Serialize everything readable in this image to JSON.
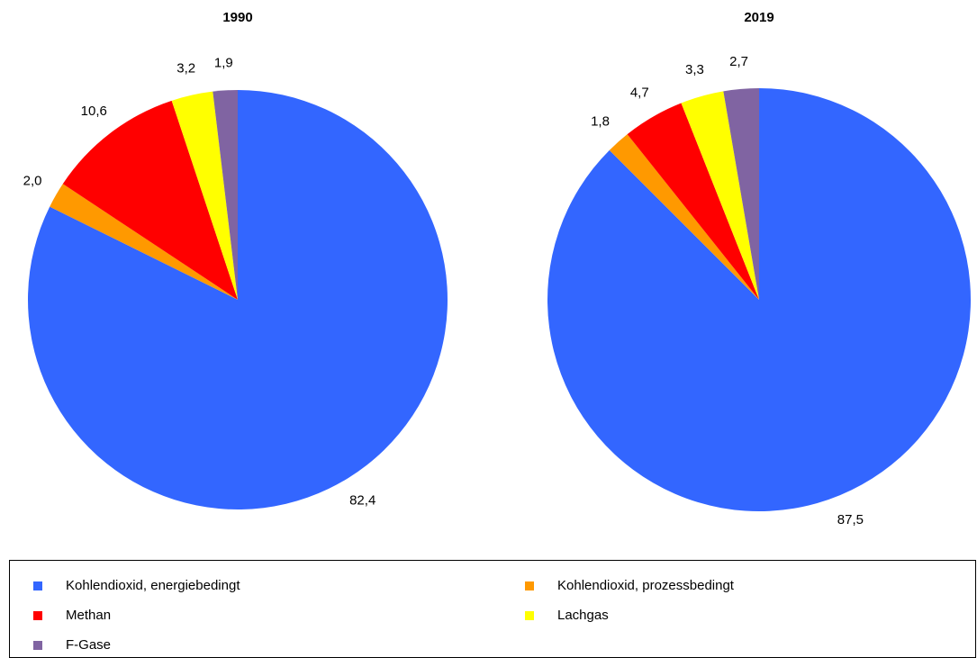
{
  "chart_data": [
    {
      "type": "pie",
      "title": "1990",
      "categories": [
        "Kohlendioxid, energiebedingt",
        "Kohlendioxid, prozessbedingt",
        "Methan",
        "Lachgas",
        "F-Gase"
      ],
      "colors": [
        "#3366ff",
        "#ff9900",
        "#ff0000",
        "#ffff00",
        "#8064a2"
      ],
      "values": [
        82.4,
        2.0,
        10.6,
        3.2,
        1.9
      ],
      "value_labels": [
        "82,4",
        "2,0",
        "10,6",
        "3,2",
        "1,9"
      ]
    },
    {
      "type": "pie",
      "title": "2019",
      "categories": [
        "Kohlendioxid, energiebedingt",
        "Kohlendioxid, prozessbedingt",
        "Methan",
        "Lachgas",
        "F-Gase"
      ],
      "colors": [
        "#3366ff",
        "#ff9900",
        "#ff0000",
        "#ffff00",
        "#8064a2"
      ],
      "values": [
        87.5,
        1.8,
        4.7,
        3.3,
        2.7
      ],
      "value_labels": [
        "87,5",
        "1,8",
        "4,7",
        "3,3",
        "2,7"
      ]
    }
  ]
}
